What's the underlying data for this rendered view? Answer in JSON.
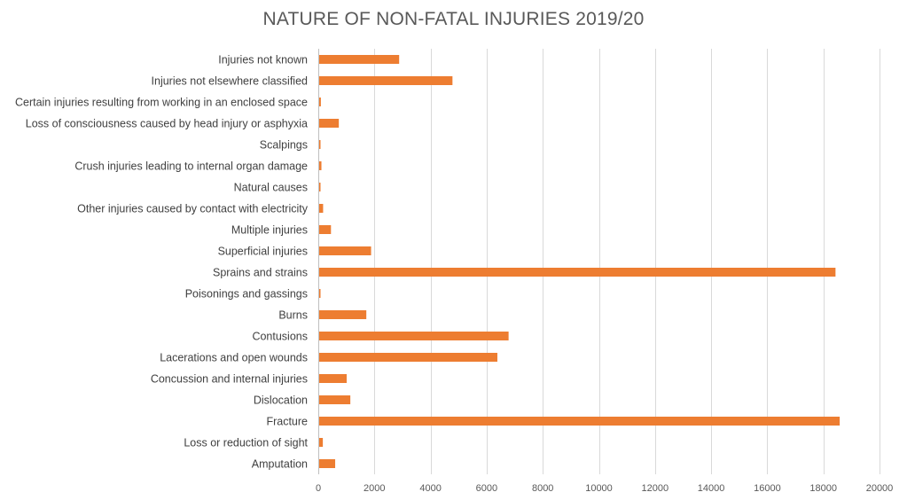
{
  "chart_data": {
    "type": "bar",
    "orientation": "horizontal",
    "title": "NATURE OF NON-FATAL INJURIES 2019/20",
    "xlabel": "",
    "ylabel": "",
    "xlim": [
      0,
      20000
    ],
    "xticks": [
      0,
      2000,
      4000,
      6000,
      8000,
      10000,
      12000,
      14000,
      16000,
      18000,
      20000
    ],
    "grid": "vertical",
    "legend": "none",
    "bar_color": "#ED7D31",
    "categories": [
      "Injuries not known",
      "Injuries not elsewhere classified",
      "Certain injuries resulting from working in an enclosed space",
      "Loss of consciousness caused by head injury or asphyxia",
      "Scalpings",
      "Crush injuries leading to internal organ damage",
      "Natural causes",
      "Other injuries caused by contact with electricity",
      "Multiple injuries",
      "Superficial injuries",
      "Sprains and strains",
      "Poisonings and gassings",
      "Burns",
      "Contusions",
      "Lacerations and open wounds",
      "Concussion and internal injuries",
      "Dislocation",
      "Fracture",
      "Loss or reduction of sight",
      "Amputation"
    ],
    "values": [
      2850,
      4750,
      60,
      700,
      20,
      80,
      30,
      140,
      420,
      1850,
      18400,
      40,
      1680,
      6750,
      6350,
      980,
      1110,
      18550,
      130,
      570
    ]
  }
}
